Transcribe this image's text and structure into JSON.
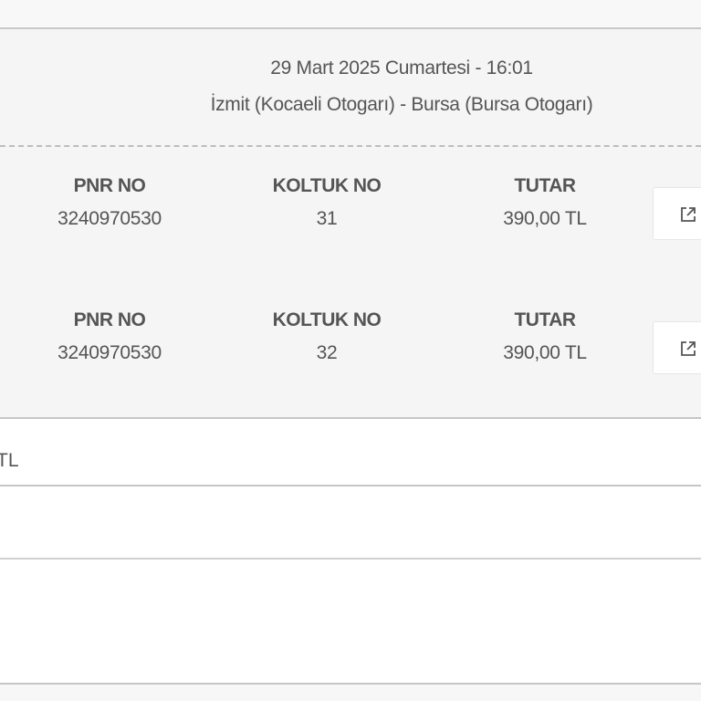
{
  "trip": {
    "date_time": "29 Mart 2025 Cumartesi - 16:01",
    "route": "İzmit (Kocaeli Otogarı) - Bursa (Bursa Otogarı)"
  },
  "tickets": [
    {
      "pnr_label": "PNR NO",
      "pnr": "3240970530",
      "seat_label": "KOLTUK NO",
      "seat": "31",
      "amount_label": "TUTAR",
      "amount": "390,00 TL",
      "action_icon": "external-link-icon"
    },
    {
      "pnr_label": "PNR NO",
      "pnr": "3240970530",
      "seat_label": "KOLTUK NO",
      "seat": "32",
      "amount_label": "TUTAR",
      "amount": "390,00 TL",
      "action_icon": "external-link-icon"
    }
  ],
  "total": {
    "partial_text": "TL"
  }
}
